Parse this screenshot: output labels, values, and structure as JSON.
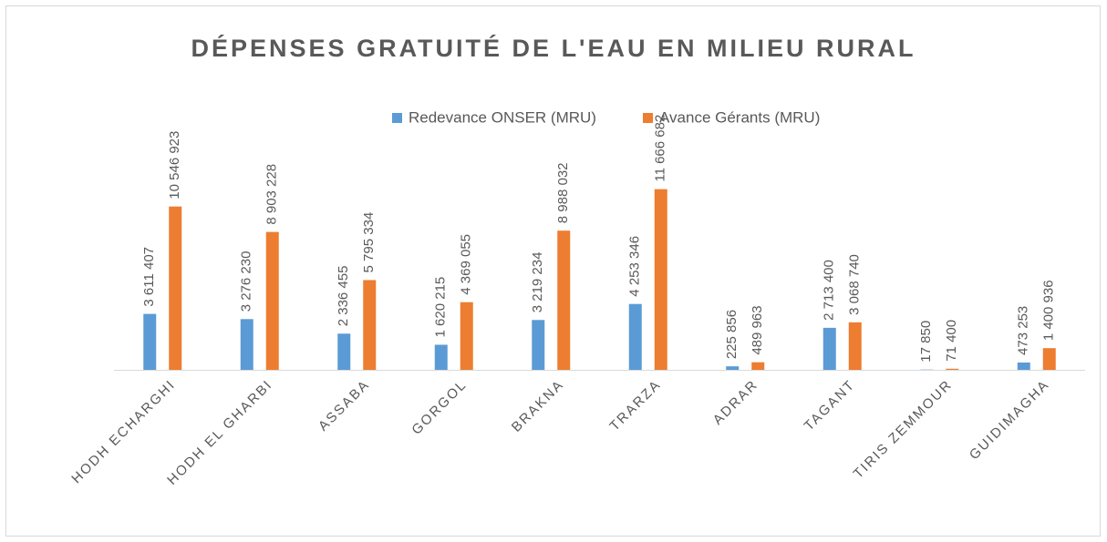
{
  "chart_data": {
    "type": "bar",
    "title": "DÉPENSES GRATUITÉ DE L'EAU EN MILIEU RURAL",
    "categories": [
      "HODH ECHARGHI",
      "HODH EL GHARBI",
      "ASSABA",
      "GORGOL",
      "BRAKNA",
      "TRARZA",
      "ADRAR",
      "TAGANT",
      "TIRIS ZEMMOUR",
      "GUIDIMAGHA"
    ],
    "series": [
      {
        "name": "Redevance ONSER (MRU)",
        "color": "#5b9bd5",
        "values": [
          3611407,
          3276230,
          2336455,
          1620215,
          3219234,
          4253346,
          225856,
          2713400,
          17850,
          473253
        ],
        "value_labels": [
          "3 611 407",
          "3 276 230",
          "2 336 455",
          "1 620 215",
          "3 219 234",
          "4 253 346",
          "225 856",
          "2 713 400",
          "17 850",
          "473 253"
        ]
      },
      {
        "name": "Avance Gérants (MRU)",
        "color": "#ed7d31",
        "values": [
          10546923,
          8903228,
          5795334,
          4369055,
          8988032,
          11666682,
          489963,
          3068740,
          71400,
          1400936
        ],
        "value_labels": [
          "10 546 923",
          "8 903 228",
          "5 795 334",
          "4 369 055",
          "8 988 032",
          "11 666 682",
          "489 963",
          "3 068 740",
          "71 400",
          "1 400 936"
        ]
      }
    ],
    "ylim": [
      0,
      14000000
    ],
    "legend": "top"
  }
}
